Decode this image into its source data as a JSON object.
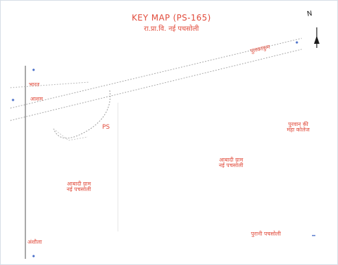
{
  "map": {
    "title": "KEY MAP (PS-165)",
    "subtitle": "रा.प्रा.वि. नई पचसोली",
    "north_label": "N",
    "north_arrow_icon": "north-arrow-icon",
    "labels": {
      "top_left_road": "भारत",
      "left_road": "आशम",
      "ps": "PS",
      "upper_right_road": "पुलकाकुम",
      "right_area": "पुरवान की\nमहा कोलेज",
      "center_area": "आबादी ग्राम\nनई पचसोली",
      "left_area": "आबादी ग्राम\nनई पचसोली",
      "bottom_right_road": "पुरानी पचसोली",
      "bottom_left": "अंशौला"
    },
    "colors": {
      "label_red": "#e14a3a",
      "road_grey": "#8a8a8a",
      "marker_blue": "#4a6fc9",
      "border": "#d6dde6"
    }
  }
}
